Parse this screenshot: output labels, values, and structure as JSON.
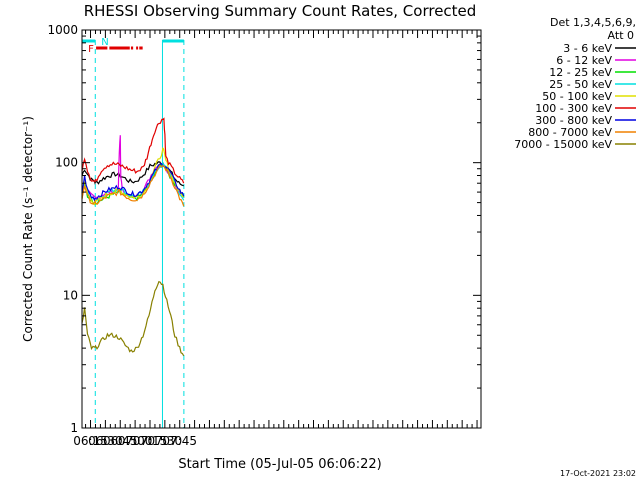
{
  "chart_data": {
    "type": "line",
    "title": "RHESSI Observing Summary Count Rates, Corrected",
    "xlabel": "Start Time (05-Jul-05 06:06:22)",
    "ylabel": "Corrected Count Rate (s⁻¹ detector⁻¹)",
    "yscale": "log",
    "ylim": [
      1,
      1000
    ],
    "xlim_minutes": [
      366.4,
      769.0
    ],
    "x_ticks": [
      {
        "label": "06:15",
        "t": 375
      },
      {
        "label": "06:30",
        "t": 390
      },
      {
        "label": "06:45",
        "t": 405
      },
      {
        "label": "07:00",
        "t": 420
      },
      {
        "label": "07:15",
        "t": 435
      },
      {
        "label": "07:30",
        "t": 450
      },
      {
        "label": "07:45",
        "t": 465
      }
    ],
    "y_ticks": [
      {
        "label": "1",
        "v": 1
      },
      {
        "label": "10",
        "v": 10
      },
      {
        "label": "100",
        "v": 100
      },
      {
        "label": "1000",
        "v": 1000
      }
    ],
    "legend_header": [
      "Det 1,3,4,5,6,9,",
      "Att 0"
    ],
    "legend_position": "right",
    "flags": {
      "night_label": "N",
      "flare_label": "F",
      "night_color": "#00e0e0",
      "flare_color": "#e00000",
      "night_segments": [
        [
          366.4,
          379.8
        ],
        [
          447.6,
          469.2
        ]
      ],
      "flare_segments": [
        [
          380.6,
          392.0
        ],
        [
          394.0,
          414.6
        ],
        [
          415.8,
          418.0
        ],
        [
          421.0,
          423.0
        ],
        [
          424.2,
          427.6
        ]
      ],
      "night_boundaries": [
        366.4,
        379.8,
        447.6,
        469.2
      ]
    },
    "series": [
      {
        "name": "3 - 6 keV",
        "color": "#000000",
        "points": [
          [
            366.4,
            80
          ],
          [
            369,
            90
          ],
          [
            372,
            82
          ],
          [
            376,
            74
          ],
          [
            379,
            73
          ],
          [
            380,
            70
          ],
          [
            383,
            72
          ],
          [
            388,
            76
          ],
          [
            394,
            80
          ],
          [
            400,
            82
          ],
          [
            405,
            80
          ],
          [
            410,
            76
          ],
          [
            415,
            72
          ],
          [
            420,
            72
          ],
          [
            425,
            76
          ],
          [
            430,
            84
          ],
          [
            435,
            94
          ],
          [
            440,
            98
          ],
          [
            445,
            100
          ],
          [
            448,
            98
          ],
          [
            452,
            92
          ],
          [
            456,
            85
          ],
          [
            460,
            76
          ],
          [
            464,
            70
          ],
          [
            469,
            67
          ]
        ]
      },
      {
        "name": "6 - 12 keV",
        "color": "#e000e0",
        "points": [
          [
            366.4,
            60
          ],
          [
            369,
            70
          ],
          [
            372,
            62
          ],
          [
            376,
            56
          ],
          [
            379,
            54
          ],
          [
            380,
            54
          ],
          [
            383,
            55
          ],
          [
            388,
            58
          ],
          [
            394,
            60
          ],
          [
            400,
            62
          ],
          [
            403,
            64
          ],
          [
            404,
            120
          ],
          [
            405,
            160
          ],
          [
            405.5,
            80
          ],
          [
            407,
            62
          ],
          [
            412,
            58
          ],
          [
            417,
            55
          ],
          [
            422,
            56
          ],
          [
            428,
            62
          ],
          [
            433,
            72
          ],
          [
            438,
            86
          ],
          [
            443,
            96
          ],
          [
            447,
            98
          ],
          [
            450,
            94
          ],
          [
            454,
            84
          ],
          [
            458,
            72
          ],
          [
            463,
            62
          ],
          [
            469,
            55
          ]
        ]
      },
      {
        "name": "12 - 25 keV",
        "color": "#00e000",
        "points": [
          [
            366.4,
            55
          ],
          [
            369,
            70
          ],
          [
            372,
            56
          ],
          [
            376,
            52
          ],
          [
            379,
            50
          ],
          [
            380,
            50
          ],
          [
            385,
            52
          ],
          [
            392,
            55
          ],
          [
            398,
            58
          ],
          [
            404,
            60
          ],
          [
            410,
            57
          ],
          [
            416,
            54
          ],
          [
            422,
            54
          ],
          [
            428,
            58
          ],
          [
            434,
            68
          ],
          [
            440,
            84
          ],
          [
            445,
            96
          ],
          [
            448,
            98
          ],
          [
            451,
            92
          ],
          [
            455,
            80
          ],
          [
            460,
            70
          ],
          [
            465,
            62
          ],
          [
            469,
            55
          ]
        ]
      },
      {
        "name": "25 - 50 keV",
        "color": "#00e0e0",
        "points": [
          [
            366.4,
            56
          ],
          [
            369,
            75
          ],
          [
            372,
            60
          ],
          [
            376,
            54
          ],
          [
            379,
            52
          ],
          [
            380,
            52
          ],
          [
            386,
            55
          ],
          [
            392,
            60
          ],
          [
            398,
            62
          ],
          [
            404,
            64
          ],
          [
            410,
            60
          ],
          [
            416,
            56
          ],
          [
            422,
            56
          ],
          [
            428,
            60
          ],
          [
            434,
            70
          ],
          [
            440,
            84
          ],
          [
            445,
            94
          ],
          [
            448,
            96
          ],
          [
            451,
            92
          ],
          [
            455,
            84
          ],
          [
            460,
            70
          ],
          [
            465,
            58
          ],
          [
            469,
            52
          ]
        ]
      },
      {
        "name": "50 - 100 keV",
        "color": "#e0e000",
        "points": [
          [
            366.4,
            55
          ],
          [
            369,
            72
          ],
          [
            372,
            58
          ],
          [
            376,
            52
          ],
          [
            379,
            50
          ],
          [
            380,
            50
          ],
          [
            386,
            54
          ],
          [
            392,
            58
          ],
          [
            398,
            60
          ],
          [
            404,
            62
          ],
          [
            410,
            58
          ],
          [
            416,
            55
          ],
          [
            422,
            55
          ],
          [
            428,
            58
          ],
          [
            434,
            72
          ],
          [
            440,
            92
          ],
          [
            445,
            110
          ],
          [
            448,
            125
          ],
          [
            449,
            120
          ],
          [
            451,
            104
          ],
          [
            455,
            86
          ],
          [
            460,
            70
          ],
          [
            465,
            60
          ],
          [
            469,
            56
          ]
        ]
      },
      {
        "name": "100 - 300 keV",
        "color": "#e00000",
        "points": [
          [
            366.4,
            85
          ],
          [
            369,
            110
          ],
          [
            372,
            88
          ],
          [
            376,
            74
          ],
          [
            379,
            72
          ],
          [
            380,
            72
          ],
          [
            386,
            88
          ],
          [
            392,
            96
          ],
          [
            398,
            98
          ],
          [
            404,
            96
          ],
          [
            410,
            92
          ],
          [
            416,
            88
          ],
          [
            422,
            86
          ],
          [
            428,
            92
          ],
          [
            432,
            110
          ],
          [
            436,
            140
          ],
          [
            440,
            175
          ],
          [
            444,
            200
          ],
          [
            447,
            212
          ],
          [
            449,
            214
          ],
          [
            450,
            160
          ],
          [
            451,
            110
          ],
          [
            455,
            96
          ],
          [
            460,
            84
          ],
          [
            465,
            76
          ],
          [
            469,
            70
          ]
        ]
      },
      {
        "name": "300 - 800 keV",
        "color": "#0000e0",
        "points": [
          [
            366.4,
            60
          ],
          [
            369,
            78
          ],
          [
            372,
            62
          ],
          [
            376,
            55
          ],
          [
            379,
            54
          ],
          [
            380,
            54
          ],
          [
            386,
            58
          ],
          [
            392,
            62
          ],
          [
            398,
            64
          ],
          [
            404,
            66
          ],
          [
            410,
            62
          ],
          [
            416,
            58
          ],
          [
            422,
            58
          ],
          [
            428,
            62
          ],
          [
            434,
            72
          ],
          [
            440,
            86
          ],
          [
            445,
            96
          ],
          [
            448,
            98
          ],
          [
            451,
            94
          ],
          [
            455,
            86
          ],
          [
            460,
            72
          ],
          [
            465,
            62
          ],
          [
            469,
            56
          ]
        ]
      },
      {
        "name": "800 - 7000 keV",
        "color": "#f08000",
        "points": [
          [
            366.4,
            54
          ],
          [
            369,
            68
          ],
          [
            372,
            56
          ],
          [
            376,
            50
          ],
          [
            379,
            49
          ],
          [
            380,
            49
          ],
          [
            386,
            52
          ],
          [
            392,
            56
          ],
          [
            398,
            58
          ],
          [
            404,
            60
          ],
          [
            410,
            56
          ],
          [
            416,
            53
          ],
          [
            422,
            53
          ],
          [
            428,
            57
          ],
          [
            434,
            68
          ],
          [
            440,
            82
          ],
          [
            445,
            92
          ],
          [
            448,
            95
          ],
          [
            451,
            90
          ],
          [
            455,
            80
          ],
          [
            460,
            66
          ],
          [
            465,
            54
          ],
          [
            469,
            47
          ]
        ]
      },
      {
        "name": "7000 - 15000 keV",
        "color": "#888000",
        "points": [
          [
            366.4,
            6
          ],
          [
            369,
            8
          ],
          [
            372,
            5
          ],
          [
            376,
            4
          ],
          [
            379,
            4
          ],
          [
            380,
            4
          ],
          [
            386,
            4.5
          ],
          [
            392,
            5
          ],
          [
            398,
            5
          ],
          [
            404,
            4.8
          ],
          [
            410,
            4.2
          ],
          [
            416,
            3.8
          ],
          [
            422,
            4
          ],
          [
            428,
            5
          ],
          [
            434,
            7
          ],
          [
            440,
            11
          ],
          [
            444,
            13
          ],
          [
            448,
            12
          ],
          [
            452,
            9
          ],
          [
            456,
            7
          ],
          [
            460,
            5
          ],
          [
            465,
            4
          ],
          [
            469,
            3.5
          ]
        ]
      }
    ]
  },
  "footer": {
    "timestamp": "17-Oct-2021 23:02"
  }
}
